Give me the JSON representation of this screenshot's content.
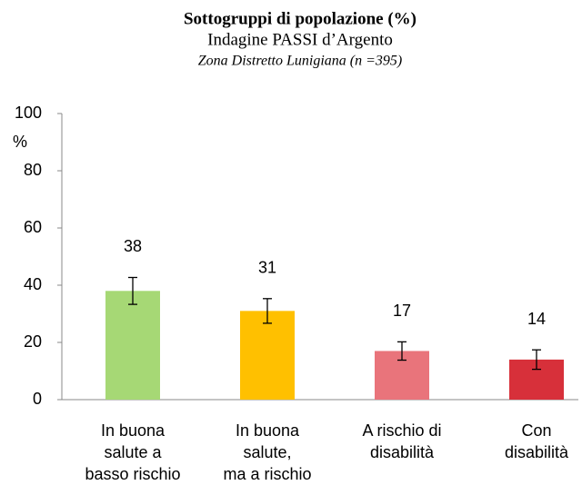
{
  "chart_data": {
    "type": "bar",
    "title": "Sottogruppi di popolazione  (%)",
    "subtitle": "Indagine PASSI d’Argento",
    "note": "Zona Distretto Lunigiana (n =395)",
    "y_label": "%",
    "categories": [
      "In buona\nsalute a\nbasso rischio",
      "In buona\nsalute,\nma a rischio",
      "A rischio di\ndisabilità",
      "Con\ndisabilità"
    ],
    "values": [
      38,
      31,
      17,
      14
    ],
    "errors": [
      4.7,
      4.3,
      3.2,
      3.4
    ],
    "colors": [
      "#a6d875",
      "#ffc000",
      "#e9747b",
      "#d7303a"
    ],
    "ylim": [
      0,
      100
    ],
    "yticks": [
      0,
      20,
      40,
      60,
      80,
      100
    ],
    "grid": false
  }
}
